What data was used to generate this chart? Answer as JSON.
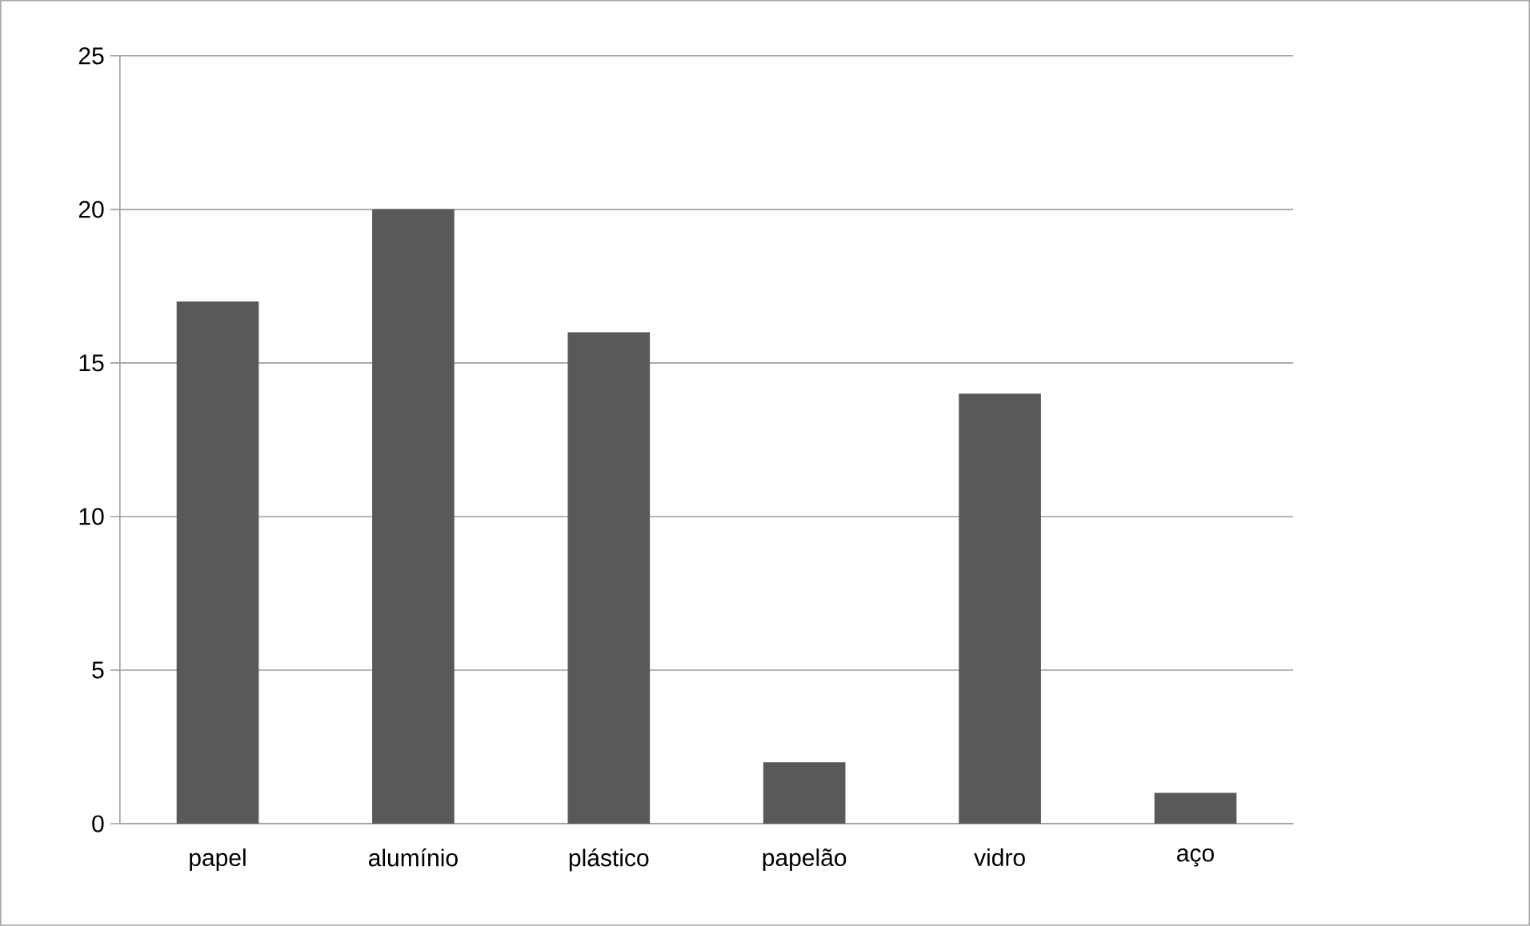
{
  "chart_data": {
    "type": "bar",
    "categories": [
      "papel",
      "alumínio",
      "plástico",
      "papelão",
      "vidro",
      "aço"
    ],
    "values": [
      17,
      20,
      16,
      2,
      14,
      1
    ],
    "color": "#595959",
    "ylim": [
      0,
      25
    ],
    "yticks": [
      0,
      5,
      10,
      15,
      20,
      25
    ],
    "grid": "y"
  }
}
